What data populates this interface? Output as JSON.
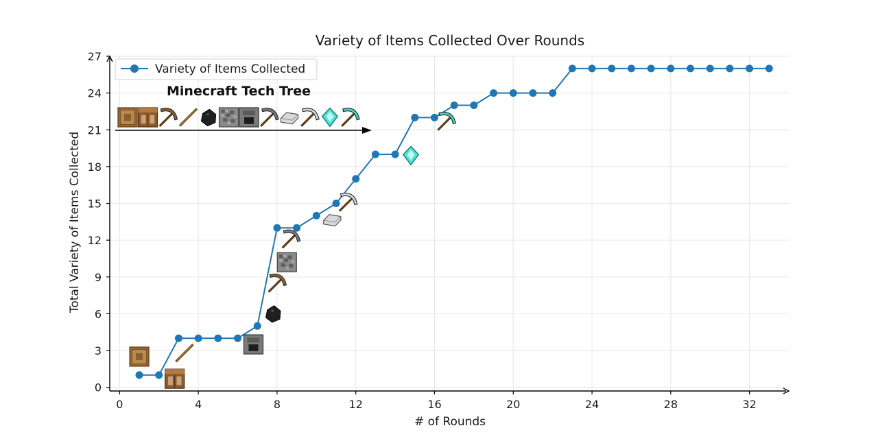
{
  "chart_data": {
    "type": "line",
    "title": "Variety of Items Collected Over Rounds",
    "xlabel": "# of Rounds",
    "ylabel": "Total Variety of Items Collected",
    "xlim": [
      -0.5,
      34
    ],
    "ylim": [
      -0.3,
      27
    ],
    "xticks": [
      0,
      4,
      8,
      12,
      16,
      20,
      24,
      28,
      32
    ],
    "yticks": [
      0,
      3,
      6,
      9,
      12,
      15,
      18,
      21,
      24,
      27
    ],
    "grid": true,
    "legend_position": "top-left",
    "series": [
      {
        "name": "Variety of Items Collected",
        "color": "#1f77b4",
        "x": [
          1,
          2,
          3,
          4,
          5,
          6,
          7,
          8,
          9,
          10,
          11,
          12,
          13,
          14,
          15,
          16,
          17,
          18,
          19,
          20,
          21,
          22,
          23,
          24,
          25,
          26,
          27,
          28,
          29,
          30,
          31,
          32,
          33
        ],
        "y": [
          1,
          1,
          4,
          4,
          4,
          4,
          5,
          13,
          13,
          14,
          15,
          17,
          19,
          19,
          22,
          22,
          23,
          23,
          24,
          24,
          24,
          24,
          26,
          26,
          26,
          26,
          26,
          26,
          26,
          26,
          26,
          26,
          26
        ]
      }
    ],
    "annotation_title": "Minecraft Tech Tree",
    "tech_tree_icons": [
      "log-icon",
      "crafting-table-icon",
      "wooden-pickaxe-icon",
      "stick-icon",
      "coal-icon",
      "cobblestone-icon",
      "furnace-icon",
      "stone-pickaxe-icon",
      "iron-ingot-icon",
      "iron-pickaxe-icon",
      "diamond-icon",
      "diamond-pickaxe-icon"
    ],
    "point_icons": [
      {
        "icon": "log-icon",
        "x": 1,
        "y": 2.5
      },
      {
        "icon": "crafting-table-icon",
        "x": 2.8,
        "y": 0.7
      },
      {
        "icon": "stick-icon",
        "x": 3.3,
        "y": 2.8
      },
      {
        "icon": "furnace-icon",
        "x": 6.8,
        "y": 3.5
      },
      {
        "icon": "coal-icon",
        "x": 7.8,
        "y": 6
      },
      {
        "icon": "wooden-pickaxe-icon",
        "x": 8,
        "y": 8.5
      },
      {
        "icon": "cobblestone-icon",
        "x": 8.5,
        "y": 10.2
      },
      {
        "icon": "stone-pickaxe-icon",
        "x": 8.7,
        "y": 12.1
      },
      {
        "icon": "iron-ingot-icon",
        "x": 10.8,
        "y": 13.7
      },
      {
        "icon": "iron-pickaxe-icon",
        "x": 11.6,
        "y": 15.1
      },
      {
        "icon": "diamond-icon",
        "x": 14.8,
        "y": 18.9
      },
      {
        "icon": "diamond-pickaxe-icon",
        "x": 16.6,
        "y": 21.7
      }
    ]
  }
}
